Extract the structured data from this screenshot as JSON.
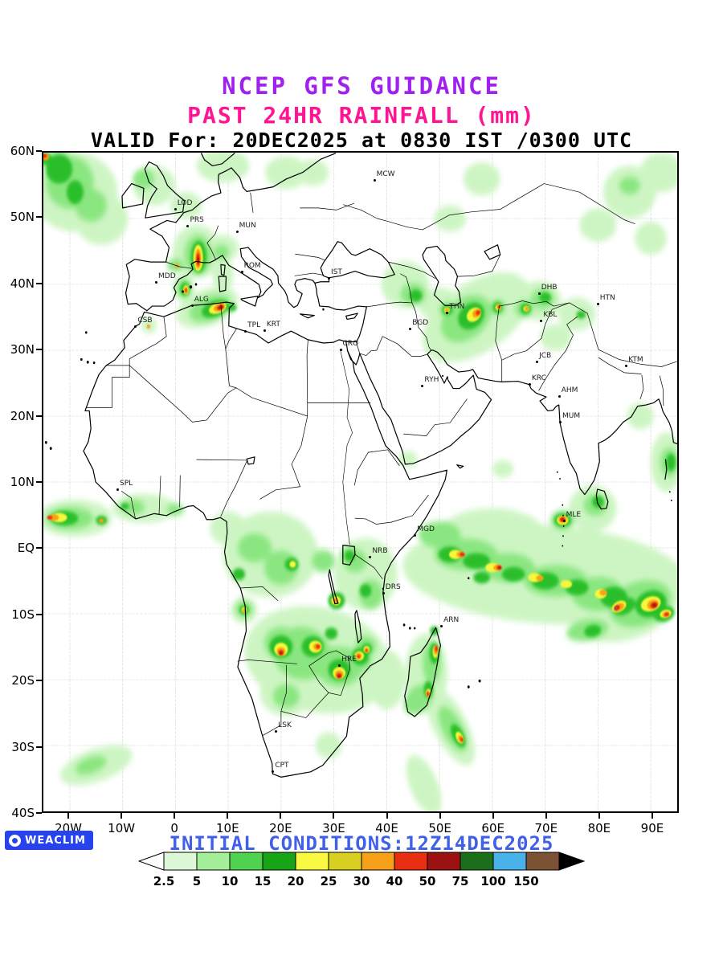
{
  "titles": {
    "line1": "NCEP GFS GUIDANCE",
    "line2": "PAST 24HR RAINFALL (mm)",
    "line3": "VALID For: 20DEC2025 at 0830 IST /0300 UTC"
  },
  "colors": {
    "title1": "#a020f0",
    "title2": "#ff1493",
    "title3": "#000000",
    "initial_conditions": "#4060e8",
    "badge_bg": "#2743ee",
    "badge_text": "#ffffff"
  },
  "axes": {
    "lat_ticks": [
      {
        "label": "60N",
        "value": 60
      },
      {
        "label": "50N",
        "value": 50
      },
      {
        "label": "40N",
        "value": 40
      },
      {
        "label": "30N",
        "value": 30
      },
      {
        "label": "20N",
        "value": 20
      },
      {
        "label": "10N",
        "value": 10
      },
      {
        "label": "EQ",
        "value": 0
      },
      {
        "label": "10S",
        "value": -10
      },
      {
        "label": "20S",
        "value": -20
      },
      {
        "label": "30S",
        "value": -30
      },
      {
        "label": "40S",
        "value": -40
      }
    ],
    "lon_ticks": [
      {
        "label": "20W",
        "value": -20
      },
      {
        "label": "10W",
        "value": -10
      },
      {
        "label": "0",
        "value": 0
      },
      {
        "label": "10E",
        "value": 10
      },
      {
        "label": "20E",
        "value": 20
      },
      {
        "label": "30E",
        "value": 30
      },
      {
        "label": "40E",
        "value": 40
      },
      {
        "label": "50E",
        "value": 50
      },
      {
        "label": "60E",
        "value": 60
      },
      {
        "label": "70E",
        "value": 70
      },
      {
        "label": "80E",
        "value": 80
      },
      {
        "label": "90E",
        "value": 90
      }
    ],
    "lon_range": [
      -25,
      95
    ],
    "lat_range": [
      -40,
      60
    ]
  },
  "cities": [
    {
      "code": "MCW",
      "lon": 37.6,
      "lat": 55.8
    },
    {
      "code": "LOD",
      "lon": -0.1,
      "lat": 51.5
    },
    {
      "code": "PRS",
      "lon": 2.3,
      "lat": 48.9
    },
    {
      "code": "MUN",
      "lon": 11.6,
      "lat": 48.1
    },
    {
      "code": "ROM",
      "lon": 12.5,
      "lat": 41.9
    },
    {
      "code": "IST",
      "lon": 29.0,
      "lat": 41.0
    },
    {
      "code": "MDD",
      "lon": -3.7,
      "lat": 40.4
    },
    {
      "code": "DHB",
      "lon": 68.8,
      "lat": 38.6
    },
    {
      "code": "HTN",
      "lon": 79.9,
      "lat": 37.1
    },
    {
      "code": "ALG",
      "lon": 3.1,
      "lat": 36.8
    },
    {
      "code": "THN",
      "lon": 51.4,
      "lat": 35.7
    },
    {
      "code": "KBL",
      "lon": 69.2,
      "lat": 34.5
    },
    {
      "code": "CSB",
      "lon": -7.6,
      "lat": 33.6
    },
    {
      "code": "TPL",
      "lon": 13.2,
      "lat": 32.9
    },
    {
      "code": "KRT",
      "lon": 16.8,
      "lat": 33.0
    },
    {
      "code": "BGD",
      "lon": 44.4,
      "lat": 33.3
    },
    {
      "code": "CRO",
      "lon": 31.2,
      "lat": 30.1
    },
    {
      "code": "JCB",
      "lon": 68.4,
      "lat": 28.3
    },
    {
      "code": "KTM",
      "lon": 85.3,
      "lat": 27.7
    },
    {
      "code": "RYH",
      "lon": 46.7,
      "lat": 24.6
    },
    {
      "code": "KRC",
      "lon": 67.0,
      "lat": 24.9
    },
    {
      "code": "AHM",
      "lon": 72.6,
      "lat": 23.0
    },
    {
      "code": "MUM",
      "lon": 72.8,
      "lat": 19.1
    },
    {
      "code": "SPL",
      "lon": -11.0,
      "lat": 8.9
    },
    {
      "code": "MGD",
      "lon": 45.3,
      "lat": 2.0
    },
    {
      "code": "NRB",
      "lon": 36.8,
      "lat": -1.3
    },
    {
      "code": "MLE",
      "lon": 73.5,
      "lat": 4.2
    },
    {
      "code": "DRS",
      "lon": 39.3,
      "lat": -6.8
    },
    {
      "code": "ARN",
      "lon": 50.3,
      "lat": -11.8
    },
    {
      "code": "HRE",
      "lon": 31.0,
      "lat": -17.8
    },
    {
      "code": "LSK",
      "lon": 19.0,
      "lat": -27.8
    },
    {
      "code": "CPT",
      "lon": 18.4,
      "lat": -33.9
    }
  ],
  "footer": {
    "badge_label": "WEACLIM",
    "initial_conditions": "INITIAL CONDITIONS:12Z14DEC2025"
  },
  "legend": {
    "values": [
      "2.5",
      "5",
      "10",
      "15",
      "20",
      "25",
      "30",
      "40",
      "50",
      "75",
      "100",
      "150"
    ],
    "colors": [
      "#dcf8d7",
      "#a5ef9b",
      "#4fd24f",
      "#17a517",
      "#f9f943",
      "#d8d020",
      "#f5a018",
      "#e92f11",
      "#9c1212",
      "#1b6f1b",
      "#49b2e8",
      "#7b5233"
    ],
    "arrow_left_color": "#ffffff",
    "arrow_right_color": "#000000"
  }
}
